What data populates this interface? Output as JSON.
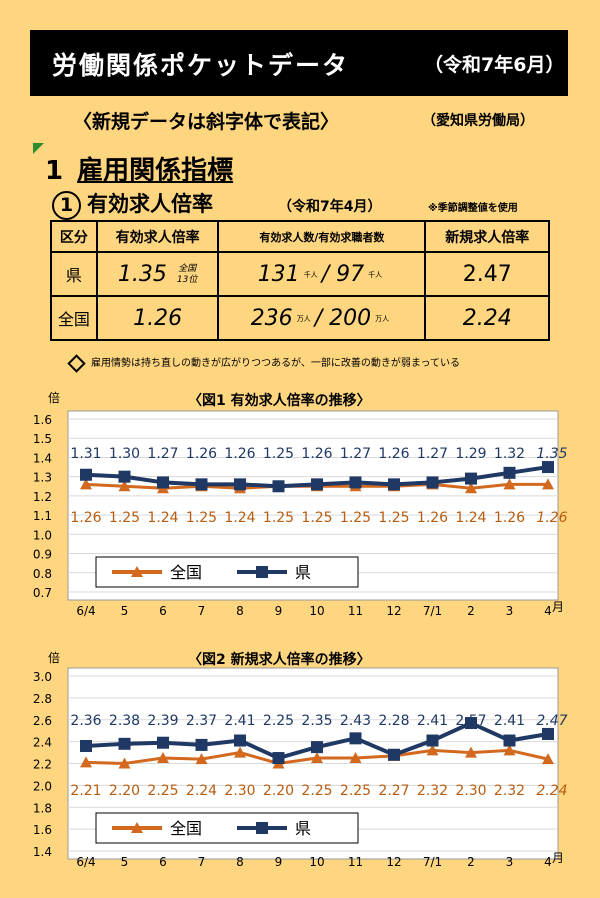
{
  "header": {
    "title": "労働関係ポケットデータ",
    "date": "（令和7年6月）"
  },
  "note": "〈新規データは斜字体で表記〉",
  "bureau": "（愛知県労働局）",
  "section": {
    "number": "1",
    "title": "雇用関係指標"
  },
  "subsection": {
    "mark": "1",
    "title": "有効求人倍率",
    "date": "（令和7年4月）",
    "note": "※季節調整値を使用"
  },
  "table": {
    "headers": [
      "区分",
      "有効求人倍率",
      "有効求人数/有効求職者数",
      "新規求人倍率"
    ],
    "rows": [
      {
        "label": "県",
        "ratio": "1.35",
        "rank_top": "全国",
        "rank_bottom": "13位",
        "offers": "131",
        "unit1": "千人",
        "seekers": "97",
        "unit2": "千人",
        "new_ratio": "2.47"
      },
      {
        "label": "全国",
        "ratio": "1.26",
        "offers": "236",
        "unit1": "万人",
        "seekers": "200",
        "unit2": "万人",
        "new_ratio": "2.24"
      }
    ],
    "slash": "/"
  },
  "remark": "雇用情勢は持ち直しの動きが広がりつつあるが、一部に改善の動きが弱まっている",
  "chart_data": [
    {
      "type": "line",
      "title": "〈図1 有効求人倍率の推移〉",
      "ylabel": "倍",
      "xlabel": "月",
      "categories": [
        "6/4",
        "5",
        "6",
        "7",
        "8",
        "9",
        "10",
        "11",
        "12",
        "7/1",
        "2",
        "3",
        "4"
      ],
      "series": [
        {
          "name": "全国",
          "color": "#d2691e",
          "marker": "triangle",
          "values": [
            1.26,
            1.25,
            1.24,
            1.25,
            1.24,
            1.25,
            1.25,
            1.25,
            1.25,
            1.26,
            1.24,
            1.26,
            1.26
          ]
        },
        {
          "name": "県",
          "color": "#1f3864",
          "marker": "square",
          "values": [
            1.31,
            1.3,
            1.27,
            1.26,
            1.26,
            1.25,
            1.26,
            1.27,
            1.26,
            1.27,
            1.29,
            1.32,
            1.35
          ]
        }
      ],
      "ylim": [
        0.7,
        1.6
      ],
      "yticks": [
        "1.6",
        "1.5",
        "1.4",
        "1.3",
        "1.2",
        "1.1",
        "1.0",
        "0.9",
        "0.8",
        "0.7"
      ],
      "grid": true,
      "legend": "bottom-left"
    },
    {
      "type": "line",
      "title": "〈図2 新規求人倍率の推移〉",
      "ylabel": "倍",
      "xlabel": "月",
      "categories": [
        "6/4",
        "5",
        "6",
        "7",
        "8",
        "9",
        "10",
        "11",
        "12",
        "7/1",
        "2",
        "3",
        "4"
      ],
      "series": [
        {
          "name": "全国",
          "color": "#d2691e",
          "marker": "triangle",
          "values": [
            2.21,
            2.2,
            2.25,
            2.24,
            2.3,
            2.2,
            2.25,
            2.25,
            2.27,
            2.32,
            2.3,
            2.32,
            2.24
          ]
        },
        {
          "name": "県",
          "color": "#1f3864",
          "marker": "square",
          "values": [
            2.36,
            2.38,
            2.39,
            2.37,
            2.41,
            2.25,
            2.35,
            2.43,
            2.28,
            2.41,
            2.57,
            2.41,
            2.47
          ]
        }
      ],
      "ylim": [
        1.4,
        3.0
      ],
      "yticks": [
        "3.0",
        "2.8",
        "2.6",
        "2.4",
        "2.2",
        "2.0",
        "1.8",
        "1.6",
        "1.4"
      ],
      "grid": true,
      "legend": "bottom-left"
    }
  ]
}
